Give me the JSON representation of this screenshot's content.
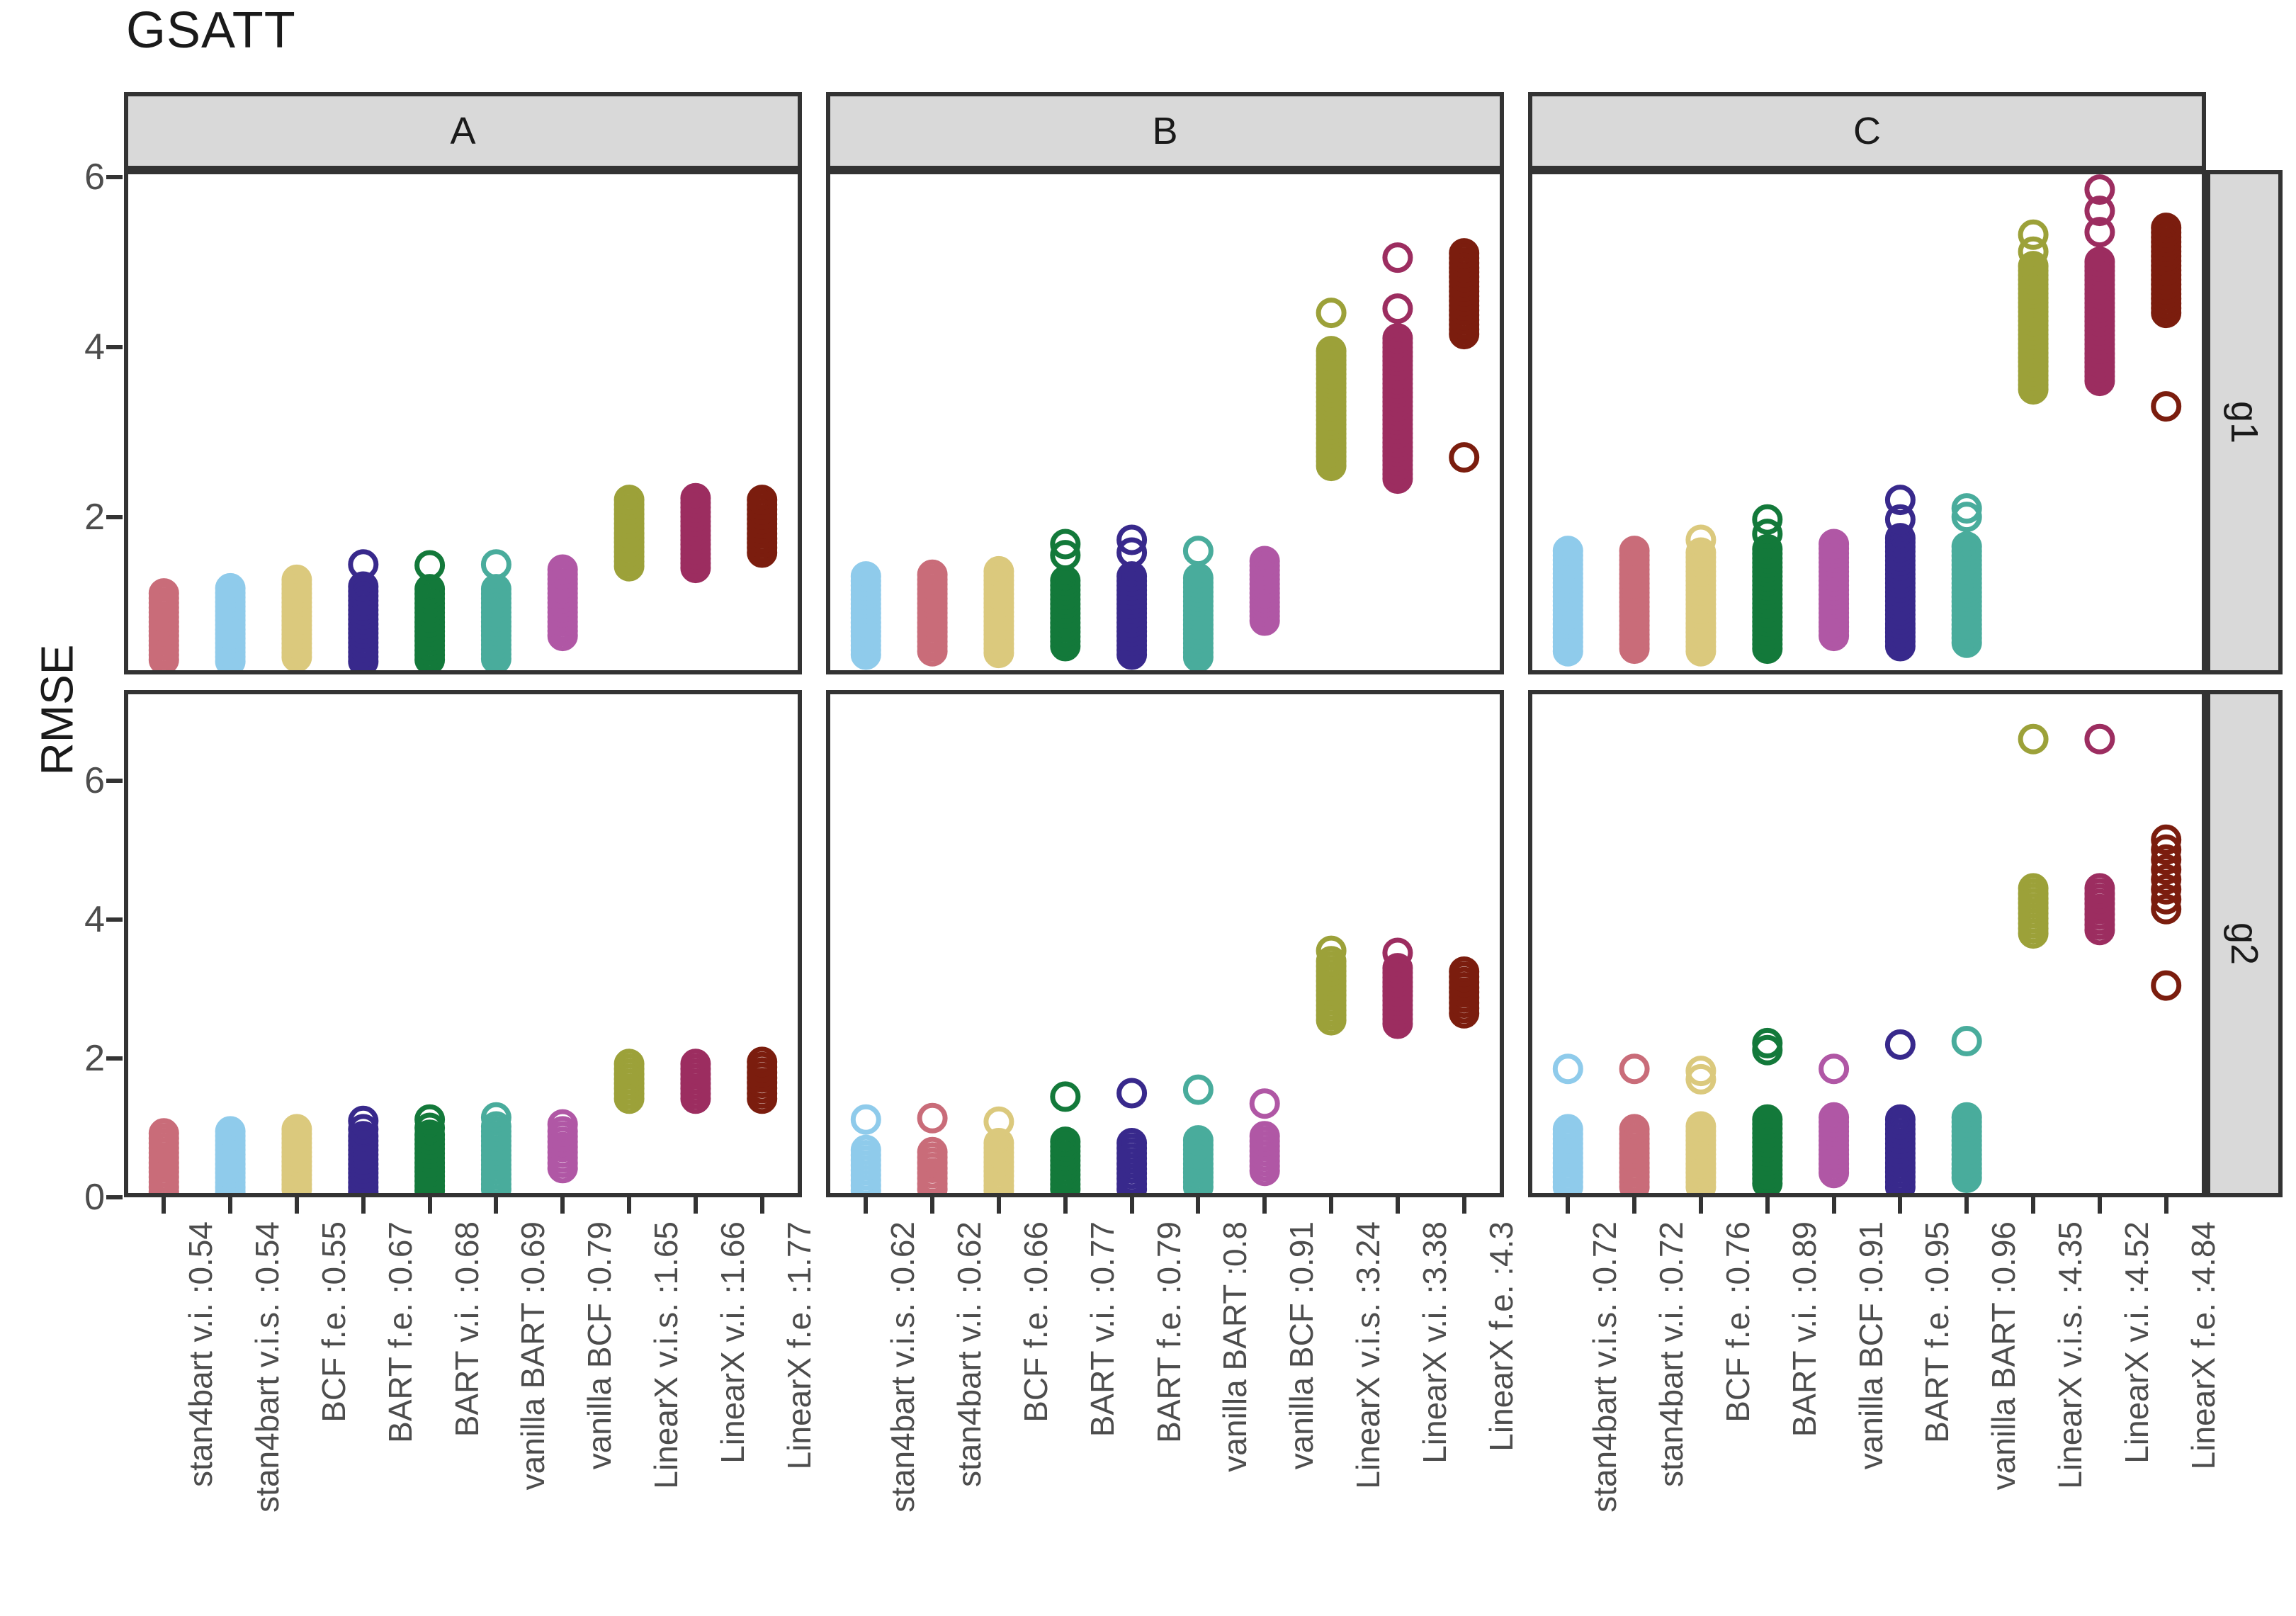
{
  "title": "GSATT",
  "ylabel": "RMSE",
  "strip_background": "#D9D9D9",
  "axis_color": "#333333",
  "tick_label_color": "#4d4d4d",
  "palette": {
    "rose": "#C96C79",
    "lightblue": "#8FCBEB",
    "sand": "#DBC97D",
    "indigo": "#38298C",
    "green": "#13793A",
    "teal": "#49AC9C",
    "purple": "#B057A5",
    "olive": "#9CA139",
    "wine": "#9C2D60",
    "darkred": "#7B1D0E"
  },
  "chart_data": {
    "type": "scatter",
    "title": "GSATT",
    "ylabel": "RMSE",
    "point_style": "open-circle",
    "facet_rows": [
      {
        "name": "g1",
        "yticks": [
          6,
          4,
          2
        ],
        "ylim": [
          0.15,
          6.08
        ]
      },
      {
        "name": "g2",
        "yticks": [
          6,
          4,
          2,
          0
        ],
        "ylim": [
          -0.02,
          7.31
        ]
      }
    ],
    "facet_cols": [
      {
        "name": "A",
        "categories": [
          {
            "label": "stan4bart v.i. :0.54",
            "color": "rose",
            "mean": 0.54
          },
          {
            "label": "stan4bart v.i.s. :0.54",
            "color": "lightblue",
            "mean": 0.54
          },
          {
            "label": "BCF f.e. :0.55",
            "color": "sand",
            "mean": 0.55
          },
          {
            "label": "BART f.e. :0.67",
            "color": "indigo",
            "mean": 0.67
          },
          {
            "label": "BART v.i. :0.68",
            "color": "green",
            "mean": 0.68
          },
          {
            "label": "vanilla BART :0.69",
            "color": "teal",
            "mean": 0.69
          },
          {
            "label": "vanilla BCF :0.79",
            "color": "purple",
            "mean": 0.79
          },
          {
            "label": "LinearX v.i.s. :1.65",
            "color": "olive",
            "mean": 1.65
          },
          {
            "label": "LinearX v.i. :1.66",
            "color": "wine",
            "mean": 1.66
          },
          {
            "label": "LinearX f.e. :1.77",
            "color": "darkred",
            "mean": 1.77
          }
        ]
      },
      {
        "name": "B",
        "categories": [
          {
            "label": "stan4bart v.i.s. :0.62",
            "color": "lightblue",
            "mean": 0.62
          },
          {
            "label": "stan4bart v.i. :0.62",
            "color": "rose",
            "mean": 0.62
          },
          {
            "label": "BCF f.e. :0.66",
            "color": "sand",
            "mean": 0.66
          },
          {
            "label": "BART v.i. :0.77",
            "color": "green",
            "mean": 0.77
          },
          {
            "label": "BART f.e. :0.79",
            "color": "indigo",
            "mean": 0.79
          },
          {
            "label": "vanilla BART :0.8",
            "color": "teal",
            "mean": 0.8
          },
          {
            "label": "vanilla BCF :0.91",
            "color": "purple",
            "mean": 0.91
          },
          {
            "label": "LinearX v.i.s. :3.24",
            "color": "olive",
            "mean": 3.24
          },
          {
            "label": "LinearX v.i. :3.38",
            "color": "wine",
            "mean": 3.38
          },
          {
            "label": "LinearX f.e. :4.3",
            "color": "darkred",
            "mean": 4.3
          }
        ]
      },
      {
        "name": "C",
        "categories": [
          {
            "label": "stan4bart v.i.s. :0.72",
            "color": "lightblue",
            "mean": 0.72
          },
          {
            "label": "stan4bart v.i. :0.72",
            "color": "rose",
            "mean": 0.72
          },
          {
            "label": "BCF f.e. :0.76",
            "color": "sand",
            "mean": 0.76
          },
          {
            "label": "BART v.i. :0.89",
            "color": "green",
            "mean": 0.89
          },
          {
            "label": "vanilla BCF :0.91",
            "color": "purple",
            "mean": 0.91
          },
          {
            "label": "BART f.e. :0.95",
            "color": "indigo",
            "mean": 0.95
          },
          {
            "label": "vanilla BART :0.96",
            "color": "teal",
            "mean": 0.96
          },
          {
            "label": "LinearX v.i.s. :4.35",
            "color": "olive",
            "mean": 4.35
          },
          {
            "label": "LinearX v.i. :4.52",
            "color": "wine",
            "mean": 4.52
          },
          {
            "label": "LinearX f.e. :4.84",
            "color": "darkred",
            "mean": 4.84
          }
        ]
      }
    ],
    "cells": {
      "g1|A": [
        {
          "dense": [
            0.32,
            1.1
          ],
          "outliers": []
        },
        {
          "dense": [
            0.3,
            1.16
          ],
          "outliers": []
        },
        {
          "dense": [
            0.35,
            1.26
          ],
          "outliers": []
        },
        {
          "dense": [
            0.3,
            1.18
          ],
          "outliers": [
            1.44
          ]
        },
        {
          "dense": [
            0.32,
            1.15
          ],
          "outliers": [
            1.43
          ]
        },
        {
          "dense": [
            0.33,
            1.15
          ],
          "outliers": [
            1.44
          ]
        },
        {
          "dense": [
            0.6,
            1.38
          ],
          "outliers": []
        },
        {
          "dense": [
            1.42,
            2.2
          ],
          "outliers": []
        },
        {
          "dense": [
            1.4,
            2.22
          ],
          "outliers": []
        },
        {
          "dense": [
            1.58,
            2.2
          ],
          "outliers": []
        }
      ],
      "g1|B": [
        {
          "dense": [
            0.38,
            1.3
          ],
          "outliers": []
        },
        {
          "dense": [
            0.42,
            1.32
          ],
          "outliers": []
        },
        {
          "dense": [
            0.4,
            1.36
          ],
          "outliers": []
        },
        {
          "dense": [
            0.48,
            1.25
          ],
          "outliers": [
            1.55,
            1.68
          ]
        },
        {
          "dense": [
            0.38,
            1.3
          ],
          "outliers": [
            1.58,
            1.73
          ]
        },
        {
          "dense": [
            0.35,
            1.28
          ],
          "outliers": [
            1.6
          ]
        },
        {
          "dense": [
            0.78,
            1.48
          ],
          "outliers": []
        },
        {
          "dense": [
            2.6,
            3.95
          ],
          "outliers": [
            4.4
          ]
        },
        {
          "dense": [
            2.45,
            4.1
          ],
          "outliers": [
            4.45,
            5.05
          ]
        },
        {
          "dense": [
            4.15,
            5.1
          ],
          "outliers": [
            2.7
          ]
        }
      ],
      "g1|C": [
        {
          "dense": [
            0.42,
            1.6
          ],
          "outliers": []
        },
        {
          "dense": [
            0.45,
            1.6
          ],
          "outliers": []
        },
        {
          "dense": [
            0.42,
            1.58
          ],
          "outliers": [
            1.73
          ]
        },
        {
          "dense": [
            0.45,
            1.62
          ],
          "outliers": [
            1.8,
            1.97
          ]
        },
        {
          "dense": [
            0.6,
            1.68
          ],
          "outliers": []
        },
        {
          "dense": [
            0.48,
            1.75
          ],
          "outliers": [
            1.97,
            2.2
          ]
        },
        {
          "dense": [
            0.52,
            1.65
          ],
          "outliers": [
            2.0,
            2.1
          ]
        },
        {
          "dense": [
            3.5,
            4.95
          ],
          "outliers": [
            5.12,
            5.32
          ]
        },
        {
          "dense": [
            3.6,
            5.0
          ],
          "outliers": [
            5.35,
            5.6,
            5.85
          ]
        },
        {
          "dense": [
            4.4,
            5.4
          ],
          "outliers": [
            3.3
          ]
        }
      ],
      "g2|A": [
        {
          "dense": [
            0.08,
            0.92
          ],
          "outliers": []
        },
        {
          "dense": [
            0.08,
            0.95
          ],
          "outliers": []
        },
        {
          "dense": [
            0.12,
            0.98
          ],
          "outliers": []
        },
        {
          "dense": [
            0.08,
            0.88
          ],
          "outliers": [
            0.98,
            1.1
          ]
        },
        {
          "dense": [
            0.1,
            0.9
          ],
          "outliers": [
            1.0,
            1.12
          ]
        },
        {
          "dense": [
            0.12,
            0.95
          ],
          "outliers": [
            1.02,
            1.15
          ]
        },
        {
          "dense": [
            0.42,
            0.95
          ],
          "outliers": [
            1.05
          ]
        },
        {
          "dense": [
            1.42,
            1.92
          ],
          "outliers": []
        },
        {
          "dense": [
            1.42,
            1.92
          ],
          "outliers": []
        },
        {
          "dense": [
            1.42,
            1.95
          ],
          "outliers": []
        }
      ],
      "g2|B": [
        {
          "dense": [
            0.1,
            0.68
          ],
          "outliers": [
            1.12
          ]
        },
        {
          "dense": [
            0.12,
            0.65
          ],
          "outliers": [
            1.14
          ]
        },
        {
          "dense": [
            0.1,
            0.78
          ],
          "outliers": [
            1.09
          ]
        },
        {
          "dense": [
            0.12,
            0.8
          ],
          "outliers": [
            1.45
          ]
        },
        {
          "dense": [
            0.12,
            0.78
          ],
          "outliers": [
            1.5
          ]
        },
        {
          "dense": [
            0.15,
            0.82
          ],
          "outliers": [
            1.55
          ]
        },
        {
          "dense": [
            0.38,
            0.88
          ],
          "outliers": [
            1.35
          ]
        },
        {
          "dense": [
            2.55,
            3.4
          ],
          "outliers": [
            3.55
          ]
        },
        {
          "dense": [
            2.5,
            3.3
          ],
          "outliers": [
            3.52
          ]
        },
        {
          "dense": [
            2.65,
            3.25
          ],
          "outliers": []
        }
      ],
      "g2|C": [
        {
          "dense": [
            0.15,
            0.98
          ],
          "outliers": [
            1.85
          ]
        },
        {
          "dense": [
            0.15,
            0.98
          ],
          "outliers": [
            1.85
          ]
        },
        {
          "dense": [
            0.15,
            1.02
          ],
          "outliers": [
            1.7,
            1.82
          ]
        },
        {
          "dense": [
            0.2,
            1.12
          ],
          "outliers": [
            2.12,
            2.22
          ]
        },
        {
          "dense": [
            0.35,
            1.15
          ],
          "outliers": [
            1.85
          ]
        },
        {
          "dense": [
            0.15,
            1.12
          ],
          "outliers": [
            2.2
          ]
        },
        {
          "dense": [
            0.28,
            1.15
          ],
          "outliers": [
            2.25
          ]
        },
        {
          "dense": [
            3.8,
            4.45
          ],
          "outliers": [
            6.6
          ]
        },
        {
          "dense": [
            3.85,
            4.45
          ],
          "outliers": [
            6.6
          ]
        },
        {
          "dense": [
            4.15,
            5.15
          ],
          "n": 8,
          "outliers": [
            3.05
          ]
        }
      ]
    }
  }
}
